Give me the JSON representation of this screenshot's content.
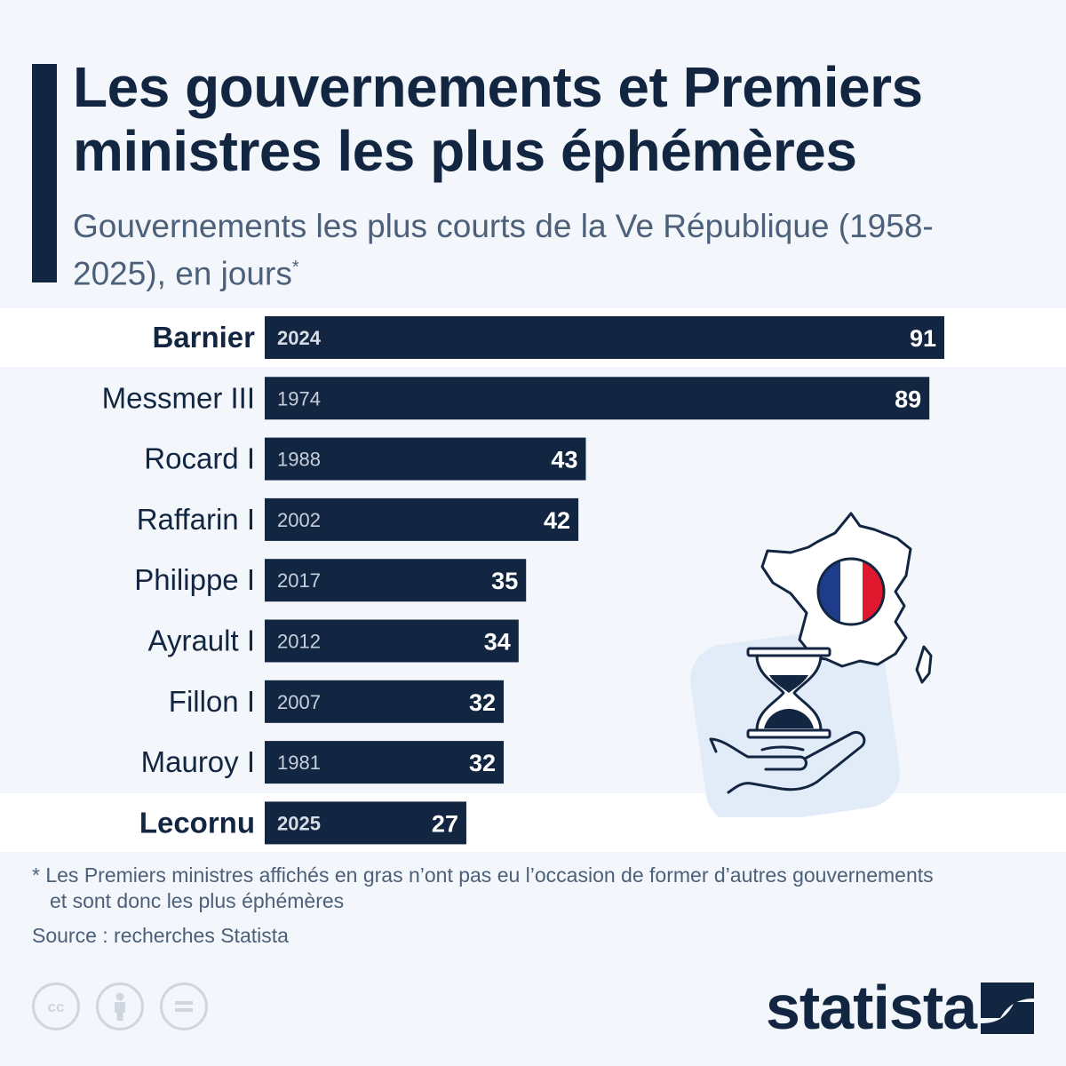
{
  "title": "Les gouvernements et Premiers ministres les plus éphémères",
  "subtitle": "Gouvernements les plus courts de la Ve République (1958-2025), en jours",
  "subtitle_marker": "*",
  "footnote": "* Les Premiers ministres affichés en gras n’ont pas eu l’occasion de former d’autres gouvernements et sont donc les plus éphémères",
  "source": "Source : recherches Statista",
  "brand": "statista",
  "license_icons": [
    "cc-icon",
    "attribution-icon",
    "no-derivatives-icon"
  ],
  "illustration_icons": [
    "france-map-icon",
    "french-flag-icon",
    "hourglass-icon",
    "hand-icon"
  ],
  "colors": {
    "bar": "#132641",
    "background": "#f3f6fa",
    "highlight_row": "#ffffff",
    "flag_blue": "#1f3c8a",
    "flag_red": "#e0182d"
  },
  "chart_data": {
    "type": "bar",
    "orientation": "horizontal",
    "categories": [
      "Barnier",
      "Messmer III",
      "Rocard I",
      "Raffarin I",
      "Philippe I",
      "Ayrault I",
      "Fillon I",
      "Mauroy I",
      "Lecornu"
    ],
    "years": [
      "2024",
      "1974",
      "1988",
      "2002",
      "2017",
      "2012",
      "2007",
      "1981",
      "2025"
    ],
    "values": [
      91,
      89,
      43,
      42,
      35,
      34,
      32,
      32,
      27
    ],
    "bold": [
      true,
      false,
      false,
      false,
      false,
      false,
      false,
      false,
      true
    ],
    "xlabel": "",
    "ylabel": "",
    "xlim": [
      0,
      91
    ],
    "grid": false,
    "legend": "none"
  }
}
